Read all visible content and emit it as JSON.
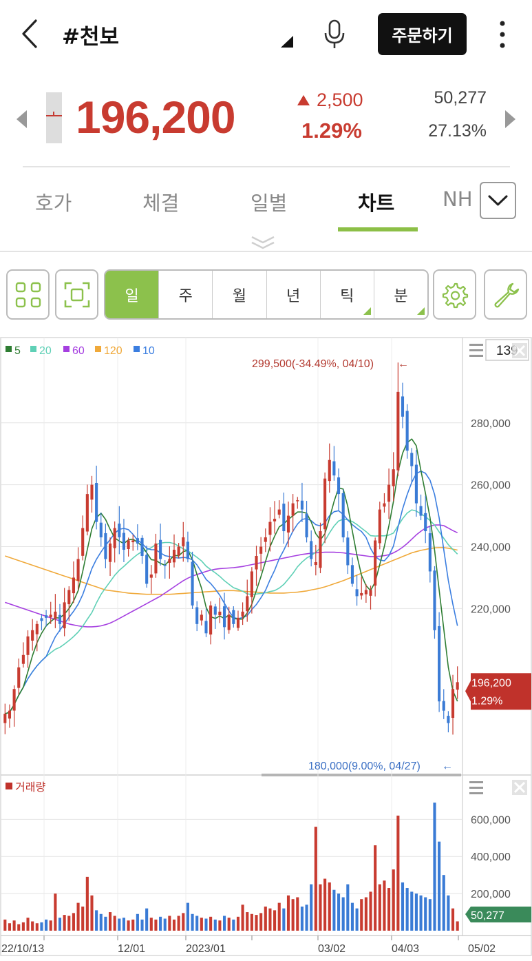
{
  "header": {
    "title": "#천보",
    "order_label": "주문하기"
  },
  "quote": {
    "price": "196,200",
    "change": "2,500",
    "change_pct": "1.29%",
    "volume": "50,277",
    "turnover_pct": "27.13%"
  },
  "tabs": [
    {
      "label": "호가"
    },
    {
      "label": "체결"
    },
    {
      "label": "일별"
    },
    {
      "label": "차트"
    },
    {
      "label": "NH"
    }
  ],
  "periods": [
    {
      "label": "일",
      "active": true
    },
    {
      "label": "주"
    },
    {
      "label": "월"
    },
    {
      "label": "년"
    },
    {
      "label": "틱",
      "has_menu": true
    },
    {
      "label": "분",
      "has_menu": true
    }
  ],
  "icons": {
    "back": "chevron-left-icon",
    "dropdown": "triangle-icon",
    "mic": "microphone-icon",
    "more": "more-vertical-icon",
    "grid": "grid-icon",
    "focus": "focus-frame-icon",
    "settings": "gear-icon",
    "tools": "wrench-icon"
  },
  "colors": {
    "up": "#c83b30",
    "down": "#3a7bd5",
    "accent": "#8cc14c",
    "ma5": "#2e7d32",
    "ma20": "#5fd0b6",
    "ma60": "#a53fe0",
    "ma120": "#f0a93a",
    "ma10": "#3b7ee0",
    "volume_tag": "#3a8a5a"
  },
  "chart_data": {
    "type": "candlestick",
    "legend": [
      {
        "label": "5",
        "color": "#2e7d32"
      },
      {
        "label": "20",
        "color": "#5fd0b6"
      },
      {
        "label": "60",
        "color": "#a53fe0"
      },
      {
        "label": "120",
        "color": "#f0a93a"
      },
      {
        "label": "10",
        "color": "#3b7ee0"
      }
    ],
    "visible_count": "139",
    "price_axis": {
      "ylim": [
        168000,
        306000
      ],
      "ticks": [
        "280,000",
        "260,000",
        "240,000",
        "220,000"
      ],
      "tick_values": [
        280000,
        260000,
        240000,
        220000
      ]
    },
    "current": {
      "price": "196,200",
      "pct": "1.29%",
      "value": 196200
    },
    "high_annotation": {
      "text": "299,500(-34.49%, 04/10)",
      "value": 299500
    },
    "low_annotation": {
      "text": "180,000(9.00%, 04/27)",
      "value": 180000
    },
    "volume_panel": {
      "label": "거래량",
      "ylim": [
        0,
        720000
      ],
      "ticks": [
        "600,000",
        "400,000",
        "200,000"
      ],
      "tick_values": [
        600000,
        400000,
        200000
      ],
      "current": "50,277"
    },
    "x_labels": [
      "22/10/13",
      "12/01",
      "2023/01",
      "03/02",
      "04/03",
      "05/02"
    ],
    "closes": [
      186000,
      187000,
      194000,
      201000,
      205000,
      211000,
      213000,
      215000,
      216000,
      217000,
      218000,
      219000,
      215000,
      222000,
      226000,
      230000,
      236000,
      246000,
      257000,
      260000,
      248000,
      243000,
      236000,
      241000,
      246000,
      243000,
      239000,
      242000,
      242000,
      241000,
      237000,
      228000,
      231000,
      241000,
      236000,
      234000,
      236000,
      239000,
      240000,
      243000,
      236000,
      221000,
      215000,
      218000,
      212000,
      221000,
      218000,
      219000,
      214000,
      218000,
      215000,
      217000,
      219000,
      224000,
      232000,
      237000,
      240000,
      243000,
      248000,
      249000,
      252000,
      245000,
      250000,
      254000,
      255000,
      252000,
      243000,
      236000,
      235000,
      245000,
      262000,
      268000,
      263000,
      257000,
      243000,
      234000,
      228000,
      224000,
      225000,
      226000,
      226000,
      242000,
      252000,
      254000,
      260000,
      265000,
      290000,
      282000,
      271000,
      266000,
      254000,
      250000,
      245000,
      232000,
      213000,
      190000,
      187000,
      183000,
      194000,
      196200
    ],
    "ma120": [
      237000,
      236500,
      236000,
      235500,
      235000,
      234500,
      234000,
      233500,
      233000,
      232500,
      232000,
      231500,
      231000,
      230500,
      230000,
      229500,
      229000,
      228500,
      228000,
      227500,
      227000,
      226500,
      226000,
      225800,
      225600,
      225400,
      225200,
      225000,
      224900,
      224800,
      224700,
      224600,
      224600,
      224600,
      224600,
      224600,
      224600,
      224700,
      224800,
      224900,
      225000,
      225100,
      225200,
      225300,
      225400,
      225500,
      225600,
      225700,
      225800,
      225800,
      225800,
      225700,
      225600,
      225500,
      225400,
      225300,
      225200,
      225100,
      225000,
      225000,
      225000,
      225000,
      225100,
      225200,
      225300,
      225500,
      225700,
      226000,
      226300,
      226600,
      227000,
      227500,
      228000,
      228500,
      229000,
      229600,
      230200,
      230800,
      231400,
      232000,
      232600,
      233200,
      233800,
      234400,
      235000,
      235600,
      236200,
      236800,
      237400,
      238000,
      238400,
      238800,
      239100,
      239400,
      239600,
      239700,
      239700,
      239500,
      239200,
      238900
    ],
    "ma60": [
      222000,
      221500,
      221000,
      220500,
      220000,
      219500,
      219000,
      218500,
      218000,
      217500,
      217000,
      216500,
      216000,
      215500,
      215000,
      214700,
      214400,
      214200,
      214100,
      214100,
      214200,
      214400,
      214800,
      215300,
      216000,
      216800,
      217600,
      218400,
      219200,
      220000,
      220800,
      221600,
      222400,
      223200,
      224000,
      225000,
      226000,
      227000,
      228000,
      229000,
      229800,
      230500,
      231000,
      231500,
      232000,
      232400,
      232700,
      232900,
      233000,
      233100,
      233200,
      233400,
      233600,
      233900,
      234200,
      234500,
      234800,
      235100,
      235400,
      235700,
      236000,
      236300,
      236600,
      236900,
      237200,
      237500,
      237700,
      237900,
      238000,
      238100,
      238200,
      238200,
      238200,
      238100,
      238000,
      237800,
      237600,
      237400,
      237200,
      237000,
      236800,
      236800,
      236900,
      237100,
      237400,
      238000,
      238800,
      239800,
      241000,
      242400,
      243800,
      245000,
      246000,
      246600,
      247000,
      247000,
      246800,
      246000,
      245200,
      244500
    ]
  }
}
